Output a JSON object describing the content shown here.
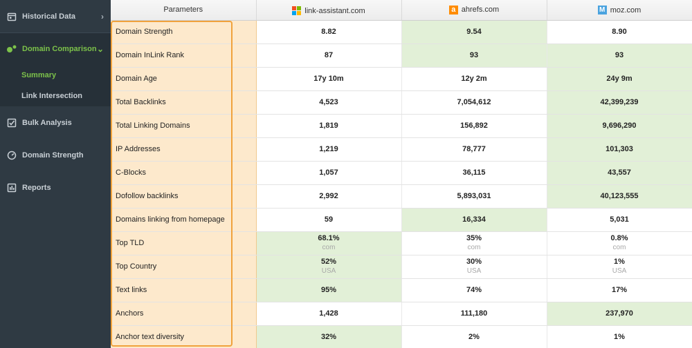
{
  "sidebar": {
    "items": [
      {
        "label": "Historical Data",
        "icon": "calendar-icon",
        "chevron": "›"
      },
      {
        "label": "Domain Comparison",
        "icon": "dots-icon",
        "chevron": "⌄"
      },
      {
        "label": "Summary"
      },
      {
        "label": "Link Intersection"
      },
      {
        "label": "Bulk Analysis",
        "icon": "checklist-icon"
      },
      {
        "label": "Domain Strength",
        "icon": "gauge-icon"
      },
      {
        "label": "Reports",
        "icon": "report-icon"
      }
    ]
  },
  "table": {
    "headers": [
      "Parameters",
      "link-assistant.com",
      "ahrefs.com",
      "moz.com"
    ],
    "rows": [
      {
        "param": "Domain Strength",
        "c1": "8.82",
        "c2": "9.54",
        "c3": "8.90"
      },
      {
        "param": "Domain InLink Rank",
        "c1": "87",
        "c2": "93",
        "c3": "93"
      },
      {
        "param": "Domain Age",
        "c1": "17y 10m",
        "c2": "12y 2m",
        "c3": "24y 9m"
      },
      {
        "param": "Total Backlinks",
        "c1": "4,523",
        "c2": "7,054,612",
        "c3": "42,399,239"
      },
      {
        "param": "Total Linking Domains",
        "c1": "1,819",
        "c2": "156,892",
        "c3": "9,696,290"
      },
      {
        "param": "IP Addresses",
        "c1": "1,219",
        "c2": "78,777",
        "c3": "101,303"
      },
      {
        "param": "C-Blocks",
        "c1": "1,057",
        "c2": "36,115",
        "c3": "43,557"
      },
      {
        "param": "Dofollow backlinks",
        "c1": "2,992",
        "c2": "5,893,031",
        "c3": "40,123,555"
      },
      {
        "param": "Domains linking from homepage",
        "c1": "59",
        "c2": "16,334",
        "c3": "5,031"
      },
      {
        "param": "Top TLD",
        "c1": "68.1%",
        "c1s": "com",
        "c2": "35%",
        "c2s": "com",
        "c3": "0.8%",
        "c3s": "com"
      },
      {
        "param": "Top Country",
        "c1": "52%",
        "c1s": "USA",
        "c2": "30%",
        "c2s": "USA",
        "c3": "1%",
        "c3s": "USA"
      },
      {
        "param": "Text links",
        "c1": "95%",
        "c2": "74%",
        "c3": "17%"
      },
      {
        "param": "Anchors",
        "c1": "1,428",
        "c2": "111,180",
        "c3": "237,970"
      },
      {
        "param": "Anchor text diversity",
        "c1": "32%",
        "c2": "2%",
        "c3": "1%"
      }
    ]
  },
  "colors": {
    "sidebar_bg": "#2f3a43",
    "accent_green": "#7cc24a",
    "param_bg": "#fde9cc",
    "param_frame": "#f0a23c",
    "highlight_bg": "#e2f0d7"
  }
}
